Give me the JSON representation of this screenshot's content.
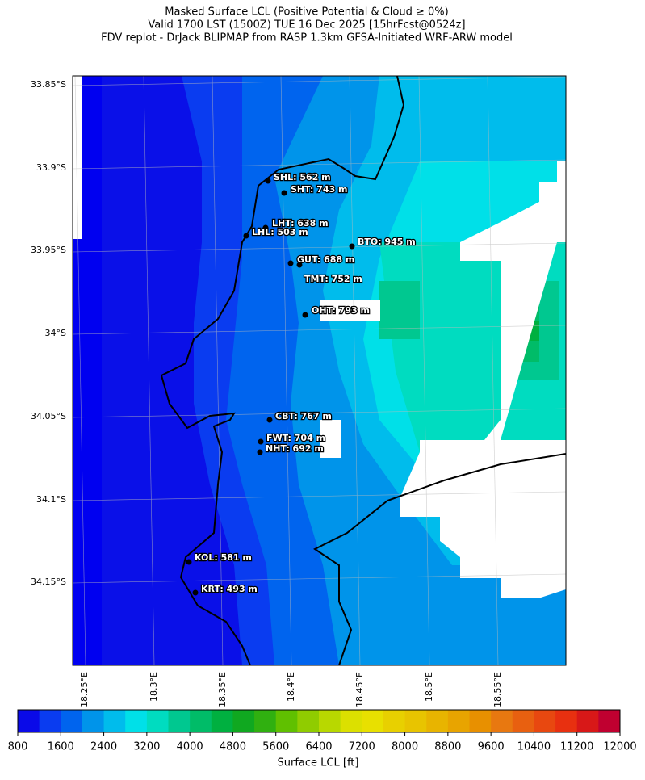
{
  "title": [
    "Masked Surface LCL (Positive Potential & Cloud ≥ 0%)",
    "Valid 1700 LST (1500Z) TUE 16 Dec 2025 [15hrFcst@0524z]",
    "FDV replot - DrJack BLIPMAP from RASP 1.3km GFSA-Initiated WRF-ARW model"
  ],
  "map": {
    "lat_labels": [
      "33.85°S",
      "33.9°S",
      "33.95°S",
      "34°S",
      "34.05°S",
      "34.1°S",
      "34.15°S"
    ],
    "lon_labels": [
      "18.25°E",
      "18.3°E",
      "18.35°E",
      "18.4°E",
      "18.45°E",
      "18.5°E",
      "18.55°E"
    ],
    "stations": [
      "SHL: 562 m",
      "SHT: 743 m",
      "LHT: 638 m",
      "LHL: 503 m",
      "BTO: 945 m",
      "GUT: 688 m",
      "TMT: 752 m",
      "OHT: 793 m",
      "CBT: 767 m",
      "FWT: 704 m",
      "NHT: 692 m",
      "KOL: 581 m",
      "KRT: 493 m"
    ]
  },
  "colorbar": {
    "label": "Surface LCL [ft]",
    "lim": [
      800,
      12000
    ],
    "step": 400,
    "ticks": [
      800,
      1600,
      2400,
      3200,
      4000,
      4800,
      5600,
      6400,
      7200,
      8000,
      8800,
      9600,
      10400,
      11200,
      12000
    ],
    "colors": [
      "#0a0ae8",
      "#0a3cf0",
      "#0064ee",
      "#0094ea",
      "#00bcec",
      "#00e0e8",
      "#00dcc0",
      "#00c890",
      "#00bc68",
      "#00b040",
      "#10a820",
      "#30b010",
      "#60c000",
      "#90cc00",
      "#b8d800",
      "#dce000",
      "#e8e000",
      "#e8d000",
      "#e8c400",
      "#e8b400",
      "#e8a400",
      "#e89000",
      "#e87810",
      "#e86010",
      "#e84810",
      "#e83010",
      "#d81818",
      "#c00030"
    ]
  }
}
